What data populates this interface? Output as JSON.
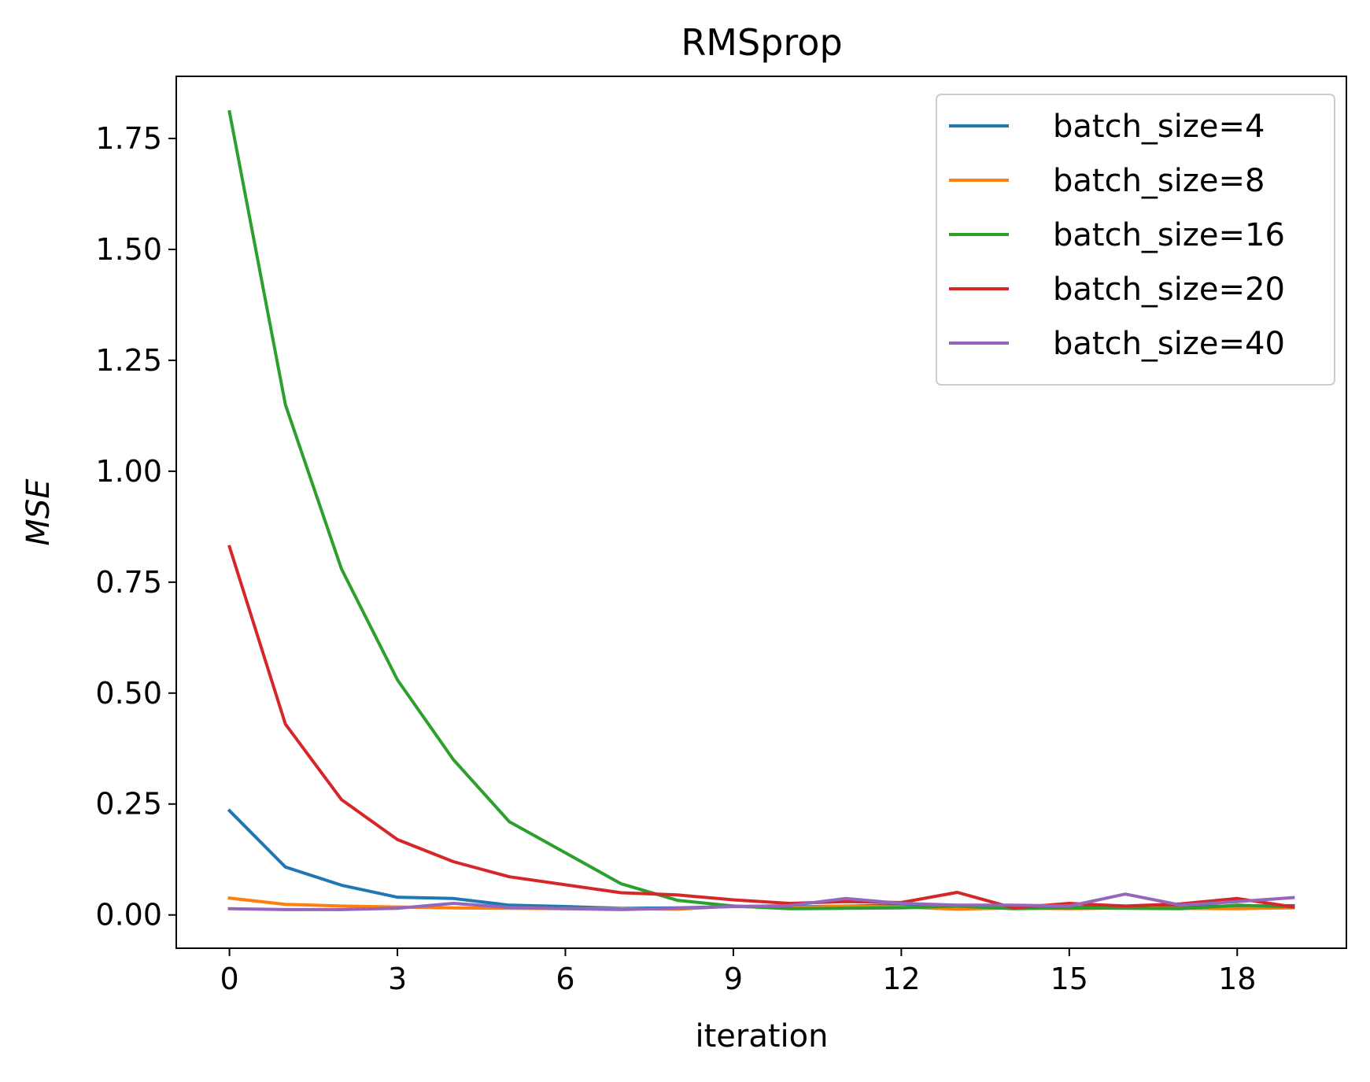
{
  "chart_data": {
    "type": "line",
    "title": "RMSprop",
    "xlabel": "iteration",
    "ylabel": "MSE",
    "x": [
      0,
      1,
      2,
      3,
      4,
      5,
      6,
      7,
      8,
      9,
      10,
      11,
      12,
      13,
      14,
      15,
      16,
      17,
      18,
      19
    ],
    "xlim": [
      -0.95,
      19.95
    ],
    "ylim": [
      -0.075,
      1.89
    ],
    "xticks": [
      0,
      3,
      6,
      9,
      12,
      15,
      18
    ],
    "yticks": [
      0.0,
      0.25,
      0.5,
      0.75,
      1.0,
      1.25,
      1.5,
      1.75
    ],
    "xtick_labels": [
      "0",
      "3",
      "6",
      "9",
      "12",
      "15",
      "18"
    ],
    "ytick_labels": [
      "0.00",
      "0.25",
      "0.50",
      "0.75",
      "1.00",
      "1.25",
      "1.50",
      "1.75"
    ],
    "grid": false,
    "legend_position": "top-right",
    "series": [
      {
        "name": "batch_size=4",
        "color": "#1f77b4",
        "values": [
          0.235,
          0.108,
          0.067,
          0.04,
          0.037,
          0.022,
          0.019,
          0.015,
          0.016,
          0.019,
          0.018,
          0.02,
          0.022,
          0.019,
          0.018,
          0.017,
          0.018,
          0.019,
          0.02,
          0.021
        ]
      },
      {
        "name": "batch_size=8",
        "color": "#ff7f0e",
        "values": [
          0.038,
          0.024,
          0.02,
          0.018,
          0.016,
          0.015,
          0.014,
          0.014,
          0.013,
          0.02,
          0.016,
          0.02,
          0.018,
          0.013,
          0.016,
          0.014,
          0.016,
          0.015,
          0.014,
          0.016
        ]
      },
      {
        "name": "batch_size=16",
        "color": "#2ca02c",
        "values": [
          1.81,
          1.15,
          0.78,
          0.53,
          0.35,
          0.21,
          0.14,
          0.07,
          0.033,
          0.02,
          0.014,
          0.015,
          0.016,
          0.02,
          0.014,
          0.016,
          0.015,
          0.014,
          0.022,
          0.018
        ]
      },
      {
        "name": "batch_size=20",
        "color": "#d62728",
        "values": [
          0.83,
          0.43,
          0.26,
          0.17,
          0.12,
          0.086,
          0.068,
          0.05,
          0.045,
          0.034,
          0.026,
          0.03,
          0.028,
          0.051,
          0.016,
          0.026,
          0.02,
          0.025,
          0.037,
          0.018
        ]
      },
      {
        "name": "batch_size=40",
        "color": "#9467bd",
        "values": [
          0.014,
          0.012,
          0.012,
          0.015,
          0.026,
          0.017,
          0.014,
          0.012,
          0.015,
          0.019,
          0.021,
          0.037,
          0.026,
          0.022,
          0.022,
          0.02,
          0.047,
          0.022,
          0.03,
          0.039
        ]
      }
    ]
  }
}
